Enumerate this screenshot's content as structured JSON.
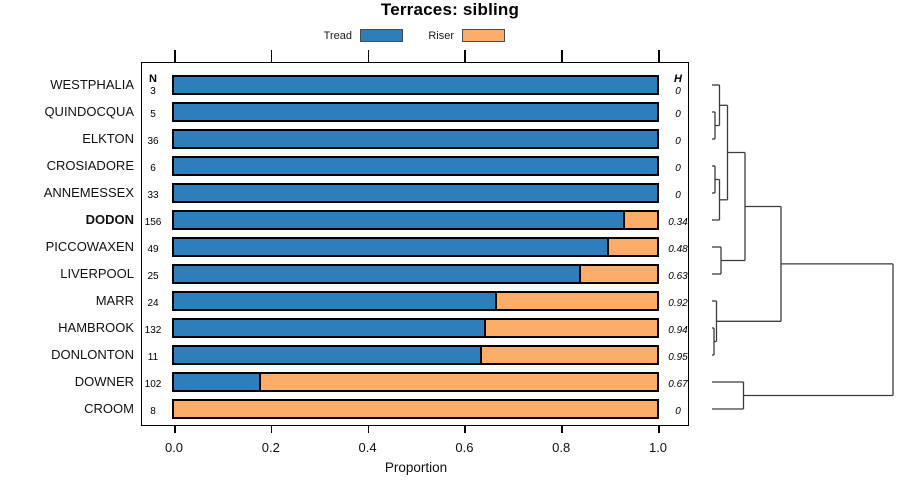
{
  "title": "Terraces: sibling",
  "legend": [
    {
      "label": "Tread",
      "color": "#2E7EBC"
    },
    {
      "label": "Riser",
      "color": "#FCAD68"
    }
  ],
  "columns": {
    "n_header": "N",
    "h_header": "H"
  },
  "xlabel": "Proportion",
  "chart_data": {
    "type": "bar",
    "stacked": true,
    "orientation": "horizontal",
    "title": "Terraces: sibling",
    "xlabel": "Proportion",
    "xlim": [
      0,
      1
    ],
    "x_ticks": [
      "0.0",
      "0.2",
      "0.4",
      "0.6",
      "0.8",
      "1.0"
    ],
    "x_tick_values": [
      0,
      0.2,
      0.4,
      0.6,
      0.8,
      1.0
    ],
    "legend_position": "top",
    "grid": false,
    "categories": [
      "WESTPHALIA",
      "QUINDOCQUA",
      "ELKTON",
      "CROSIADORE",
      "ANNEMESSEX",
      "DODON",
      "PICCOWAXEN",
      "LIVERPOOL",
      "MARR",
      "HAMBROOK",
      "DONLONTON",
      "DOWNER",
      "CROOM"
    ],
    "bold_category": "DODON",
    "n_values": [
      3,
      5,
      36,
      6,
      33,
      156,
      49,
      25,
      24,
      132,
      11,
      102,
      8
    ],
    "h_values": [
      "0",
      "0",
      "0",
      "0",
      "0",
      "0.34",
      "0.48",
      "0.63",
      "0.92",
      "0.94",
      "0.95",
      "0.67",
      "0"
    ],
    "series": [
      {
        "name": "Tread",
        "color": "#2E7EBC",
        "values": [
          1,
          1,
          1,
          1,
          1,
          0.93,
          0.897,
          0.838,
          0.665,
          0.641,
          0.633,
          0.175,
          0
        ]
      },
      {
        "name": "Riser",
        "color": "#FCAD68",
        "values": [
          0,
          0,
          0,
          0,
          0,
          0.07,
          0.103,
          0.162,
          0.335,
          0.359,
          0.367,
          0.825,
          1
        ]
      }
    ],
    "dendrogram": {
      "line_color": "#3c3c3c",
      "segments": [
        [
          712,
          85,
          719.5,
          85
        ],
        [
          712,
          112,
          715,
          112
        ],
        [
          712,
          139,
          715,
          139
        ],
        [
          712,
          166,
          715,
          166
        ],
        [
          712,
          193,
          715,
          193
        ],
        [
          712,
          220,
          719.5,
          220
        ],
        [
          712,
          247,
          721,
          247
        ],
        [
          712,
          274,
          721,
          274
        ],
        [
          712,
          301,
          716.5,
          301
        ],
        [
          712,
          328,
          714,
          328
        ],
        [
          712,
          355,
          714,
          355
        ],
        [
          712,
          382,
          743.5,
          382
        ],
        [
          712,
          409,
          743.5,
          409
        ],
        [
          715,
          112,
          715,
          139
        ],
        [
          715,
          125.5,
          719.5,
          125.5
        ],
        [
          719.5,
          85,
          719.5,
          125.5
        ],
        [
          719.5,
          105.3,
          727.5,
          105.3
        ],
        [
          715,
          166,
          715,
          193
        ],
        [
          715,
          179.5,
          719.5,
          179.5
        ],
        [
          719.5,
          179.5,
          719.5,
          220
        ],
        [
          719.5,
          199.8,
          727.5,
          199.8
        ],
        [
          727.5,
          105.3,
          727.5,
          199.8
        ],
        [
          727.5,
          152.5,
          745,
          152.5
        ],
        [
          721,
          247,
          721,
          274
        ],
        [
          721,
          260.5,
          745,
          260.5
        ],
        [
          745,
          152.5,
          745,
          260.5
        ],
        [
          745,
          206.5,
          781,
          206.5
        ],
        [
          714,
          328,
          714,
          355
        ],
        [
          714,
          341.5,
          716.5,
          341.5
        ],
        [
          716.5,
          301,
          716.5,
          341.5
        ],
        [
          716.5,
          321.3,
          781,
          321.3
        ],
        [
          781,
          206.5,
          781,
          321.3
        ],
        [
          781,
          263.9,
          893,
          263.9
        ],
        [
          743.5,
          382,
          743.5,
          409
        ],
        [
          743.5,
          395.5,
          893,
          395.5
        ],
        [
          893,
          263.9,
          893,
          395.5
        ]
      ]
    }
  }
}
